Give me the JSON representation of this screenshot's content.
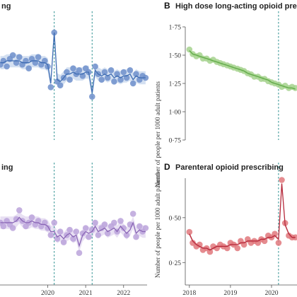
{
  "chart_data": [
    {
      "id": "panel-a",
      "type": "line",
      "title": "ng",
      "colors": {
        "line": "#3f6db3",
        "point": "#6f8fcb",
        "band": "#c9d8ee"
      },
      "ylim": [
        0.7,
        1.3
      ],
      "x_domain": [
        2018.74,
        2022.62
      ],
      "vlines": [
        2020.17,
        2021.17
      ],
      "x": [
        2018.75,
        2018.83,
        2018.92,
        2019.0,
        2019.08,
        2019.17,
        2019.25,
        2019.33,
        2019.42,
        2019.5,
        2019.58,
        2019.67,
        2019.75,
        2019.83,
        2019.92,
        2020.0,
        2020.08,
        2020.17,
        2020.25,
        2020.33,
        2020.42,
        2020.5,
        2020.58,
        2020.67,
        2020.75,
        2020.83,
        2020.92,
        2021.0,
        2021.08,
        2021.17,
        2021.25,
        2021.33,
        2021.42,
        2021.5,
        2021.58,
        2021.67,
        2021.75,
        2021.83,
        2021.92,
        2022.0,
        2022.08,
        2022.17,
        2022.25,
        2022.33,
        2022.42,
        2022.5,
        2022.58
      ],
      "values": [
        1.1,
        1.12,
        1.09,
        1.13,
        1.15,
        1.11,
        1.14,
        1.1,
        1.12,
        1.08,
        1.13,
        1.11,
        1.14,
        1.1,
        1.12,
        1.09,
        0.98,
        1.27,
        1.01,
        0.99,
        1.03,
        1.06,
        1.02,
        1.08,
        1.05,
        1.07,
        1.04,
        1.08,
        1.06,
        0.93,
        1.09,
        1.05,
        1.02,
        1.06,
        1.03,
        1.07,
        1.01,
        1.05,
        1.02,
        1.06,
        1.03,
        1.07,
        1.0,
        1.05,
        1.02,
        1.04,
        1.03
      ],
      "fitted": [
        1.11,
        1.11,
        1.12,
        1.12,
        1.12,
        1.12,
        1.12,
        1.11,
        1.11,
        1.11,
        1.12,
        1.12,
        1.12,
        1.11,
        1.11,
        1.1,
        1.0,
        1.27,
        1.02,
        1.01,
        1.03,
        1.05,
        1.05,
        1.06,
        1.05,
        1.05,
        1.05,
        1.06,
        1.06,
        0.95,
        1.07,
        1.05,
        1.04,
        1.05,
        1.04,
        1.05,
        1.03,
        1.04,
        1.03,
        1.04,
        1.04,
        1.05,
        1.02,
        1.04,
        1.03,
        1.03,
        1.03
      ],
      "band_halfwidth": 0.035
    },
    {
      "id": "panel-b",
      "type": "line",
      "title": "High dose long-acting opioid prescribi",
      "letter": "B",
      "ylabel": "Number of people per 1000 adult patients",
      "colors": {
        "line": "#5faa46",
        "point": "#a6d28e",
        "band": "#d6ecc8"
      },
      "ylim": [
        0.75,
        1.75
      ],
      "yticks": [
        "1·75",
        "1·50",
        "1·25",
        "1·00",
        "0·75"
      ],
      "ytick_values": [
        1.75,
        1.5,
        1.25,
        1.0,
        0.75
      ],
      "x_domain": [
        2017.9,
        2020.62
      ],
      "vlines": [
        2020.17
      ],
      "x": [
        2018.0,
        2018.08,
        2018.17,
        2018.25,
        2018.33,
        2018.42,
        2018.5,
        2018.58,
        2018.67,
        2018.75,
        2018.83,
        2018.92,
        2019.0,
        2019.08,
        2019.17,
        2019.25,
        2019.33,
        2019.42,
        2019.5,
        2019.58,
        2019.67,
        2019.75,
        2019.83,
        2019.92,
        2020.0,
        2020.08,
        2020.17,
        2020.25,
        2020.33,
        2020.42,
        2020.5,
        2020.58
      ],
      "values": [
        1.55,
        1.51,
        1.49,
        1.5,
        1.47,
        1.47,
        1.45,
        1.46,
        1.44,
        1.43,
        1.42,
        1.41,
        1.4,
        1.39,
        1.38,
        1.37,
        1.36,
        1.34,
        1.33,
        1.31,
        1.31,
        1.29,
        1.29,
        1.27,
        1.26,
        1.25,
        1.24,
        1.22,
        1.23,
        1.21,
        1.22,
        1.21
      ],
      "fitted": [
        1.54,
        1.51,
        1.5,
        1.49,
        1.48,
        1.47,
        1.46,
        1.45,
        1.44,
        1.43,
        1.42,
        1.41,
        1.4,
        1.39,
        1.38,
        1.37,
        1.36,
        1.34,
        1.33,
        1.32,
        1.31,
        1.3,
        1.29,
        1.28,
        1.26,
        1.25,
        1.24,
        1.23,
        1.22,
        1.21,
        1.21,
        1.2
      ],
      "band_halfwidth": 0.015
    },
    {
      "id": "panel-c",
      "type": "line",
      "title": "ing",
      "colors": {
        "line": "#8a66b6",
        "point": "#bba3da",
        "band": "#e2d8f0"
      },
      "ylim": [
        0.7,
        1.3
      ],
      "x_domain": [
        2018.74,
        2022.62
      ],
      "vlines": [
        2020.17,
        2021.17
      ],
      "xticks": [
        "2020",
        "2021",
        "2022"
      ],
      "xtick_values": [
        2020.0,
        2021.0,
        2022.0
      ],
      "x": [
        2018.75,
        2018.83,
        2018.92,
        2019.0,
        2019.08,
        2019.17,
        2019.25,
        2019.33,
        2019.42,
        2019.5,
        2019.58,
        2019.67,
        2019.75,
        2019.83,
        2019.92,
        2020.0,
        2020.08,
        2020.17,
        2020.25,
        2020.33,
        2020.42,
        2020.5,
        2020.58,
        2020.67,
        2020.75,
        2020.83,
        2020.92,
        2021.0,
        2021.08,
        2021.17,
        2021.25,
        2021.33,
        2021.42,
        2021.5,
        2021.58,
        2021.67,
        2021.75,
        2021.83,
        2021.92,
        2022.0,
        2022.08,
        2022.17,
        2022.25,
        2022.33,
        2022.42,
        2022.5,
        2022.58
      ],
      "values": [
        1.05,
        1.03,
        1.06,
        1.04,
        1.02,
        1.07,
        1.12,
        1.06,
        1.03,
        1.05,
        1.08,
        1.04,
        1.06,
        1.03,
        1.05,
        1.02,
        0.98,
        1.05,
        0.96,
        1.0,
        0.94,
        0.98,
        1.01,
        0.96,
        1.0,
        0.88,
        0.99,
        1.02,
        0.97,
        1.01,
        1.05,
        0.98,
        1.02,
        1.04,
        0.99,
        1.03,
        1.05,
        1.0,
        1.06,
        1.02,
        0.98,
        1.04,
        1.1,
        0.97,
        1.03,
        1.0,
        1.02
      ],
      "fitted": [
        1.05,
        1.05,
        1.05,
        1.05,
        1.05,
        1.06,
        1.08,
        1.06,
        1.05,
        1.05,
        1.06,
        1.05,
        1.05,
        1.04,
        1.04,
        1.03,
        1.0,
        1.0,
        0.97,
        0.98,
        0.96,
        0.98,
        0.99,
        0.97,
        0.98,
        0.92,
        0.98,
        1.0,
        0.99,
        1.0,
        1.03,
        1.0,
        1.01,
        1.02,
        1.0,
        1.01,
        1.02,
        1.0,
        1.03,
        1.01,
        0.99,
        1.01,
        1.05,
        0.99,
        1.01,
        1.0,
        1.0
      ],
      "band_halfwidth": 0.035
    },
    {
      "id": "panel-d",
      "type": "line",
      "title": "Parenteral opioid prescribing",
      "letter": "D",
      "ylabel": "Number of people per 1000 adult patients",
      "colors": {
        "line": "#b5283a",
        "point": "#e0787c",
        "band": "#f3cccd"
      },
      "ylim": [
        0.125,
        0.72
      ],
      "yticks": [
        "0·50",
        "0·25"
      ],
      "ytick_values": [
        0.5,
        0.25
      ],
      "x_domain": [
        2017.9,
        2020.62
      ],
      "vlines": [
        2020.17
      ],
      "xticks": [
        "2018",
        "2019",
        "2020"
      ],
      "xtick_values": [
        2018.0,
        2019.0,
        2020.0
      ],
      "x": [
        2018.0,
        2018.08,
        2018.17,
        2018.25,
        2018.33,
        2018.42,
        2018.5,
        2018.58,
        2018.67,
        2018.75,
        2018.83,
        2018.92,
        2019.0,
        2019.08,
        2019.17,
        2019.25,
        2019.33,
        2019.42,
        2019.5,
        2019.58,
        2019.67,
        2019.75,
        2019.83,
        2019.92,
        2020.0,
        2020.08,
        2020.17,
        2020.25,
        2020.33,
        2020.42,
        2020.5,
        2020.58
      ],
      "values": [
        0.42,
        0.36,
        0.34,
        0.35,
        0.32,
        0.33,
        0.31,
        0.34,
        0.33,
        0.35,
        0.34,
        0.33,
        0.36,
        0.35,
        0.33,
        0.37,
        0.35,
        0.38,
        0.36,
        0.37,
        0.36,
        0.38,
        0.37,
        0.4,
        0.39,
        0.41,
        0.36,
        0.71,
        0.47,
        0.4,
        0.39,
        0.39
      ],
      "fitted": [
        0.41,
        0.37,
        0.35,
        0.34,
        0.33,
        0.33,
        0.32,
        0.33,
        0.34,
        0.34,
        0.34,
        0.34,
        0.35,
        0.35,
        0.35,
        0.36,
        0.36,
        0.37,
        0.37,
        0.37,
        0.37,
        0.38,
        0.38,
        0.39,
        0.39,
        0.4,
        0.38,
        0.69,
        0.46,
        0.41,
        0.39,
        0.39
      ],
      "band_halfwidth": 0.01
    }
  ]
}
